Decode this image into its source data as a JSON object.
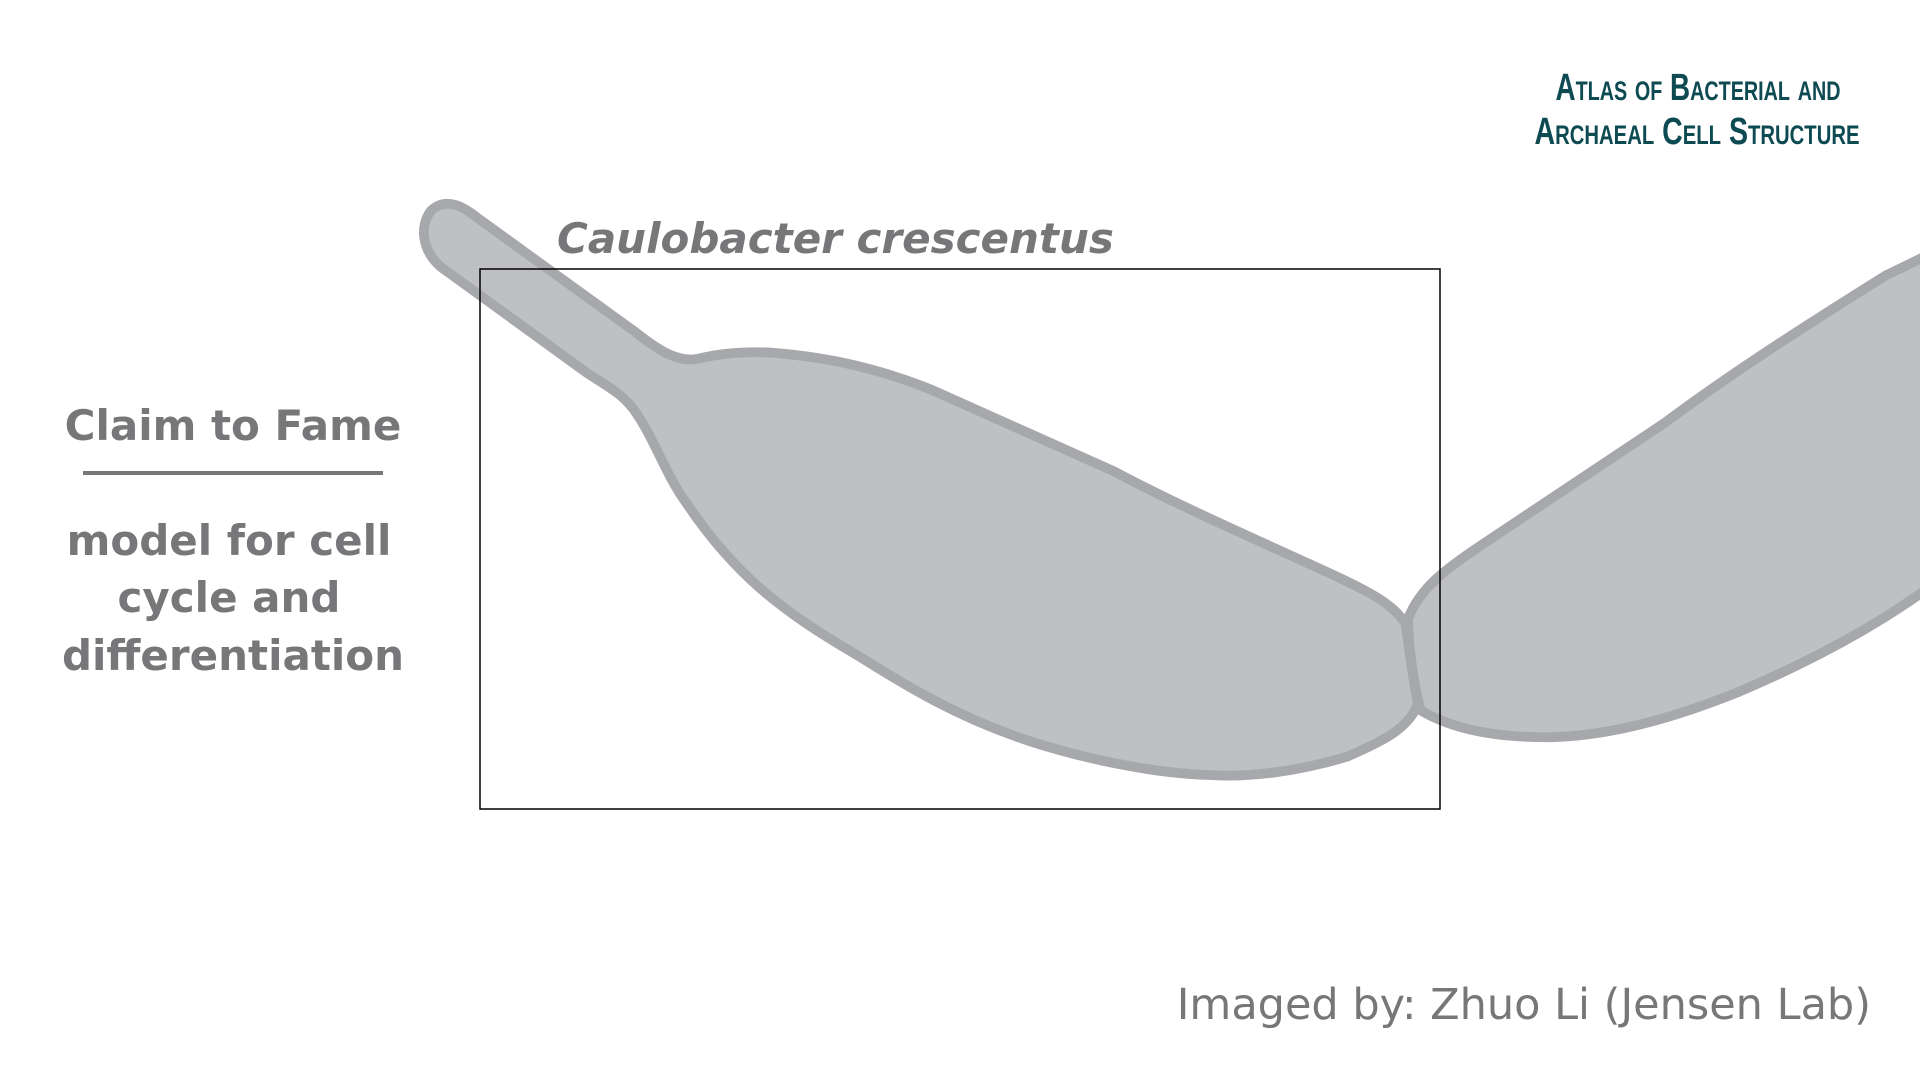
{
  "logo": {
    "line1": "Atlas of Bacterial and",
    "line2": "Archaeal Cell Structure"
  },
  "title": "Caulobacter crescentus",
  "claim": {
    "heading": "Claim to Fame",
    "lines": [
      "model for cell",
      "cycle and",
      "differentiation"
    ]
  },
  "credit": "Imaged by: Zhuo Li (Jensen Lab)"
}
